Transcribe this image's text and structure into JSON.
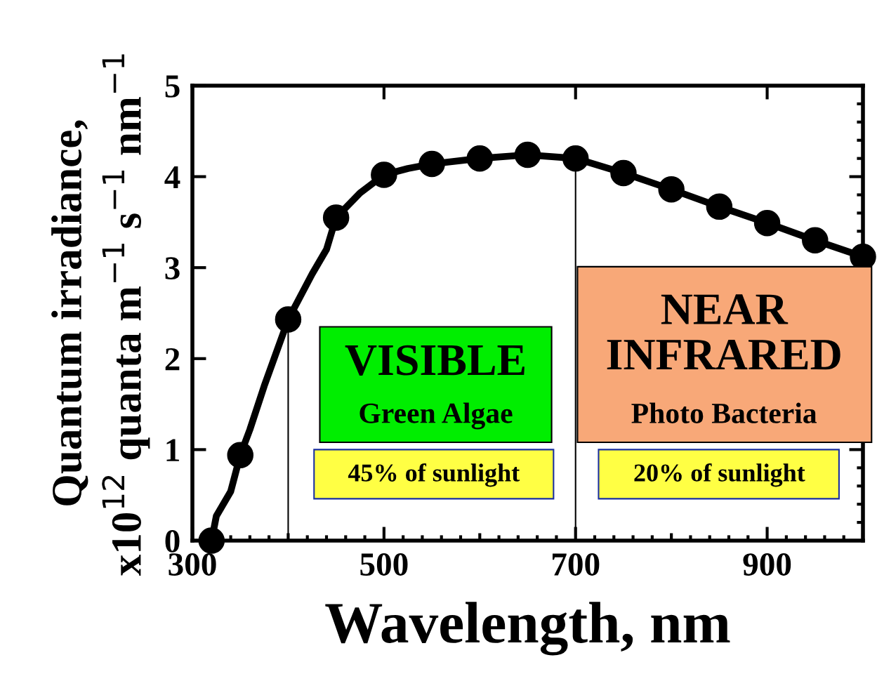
{
  "chart_data": {
    "type": "line",
    "xlabel": "Wavelength, nm",
    "ylabel": "Quantum irradiance,\nx10$^{12}$ quanta m$^{−1}$ s$^{−1}$ nm$^{−1}$",
    "xlim": [
      300,
      1000
    ],
    "ylim": [
      0,
      5
    ],
    "xticks": [
      300,
      500,
      700,
      900
    ],
    "yticks": [
      0,
      1,
      2,
      3,
      4,
      5
    ],
    "grid": false,
    "series": [
      {
        "color": "#000000",
        "marker": "none",
        "x": [
          320,
          325,
          340,
          350,
          360,
          375,
          400,
          425,
          440,
          450,
          475,
          500,
          525,
          550,
          600,
          650,
          700,
          750,
          800,
          850,
          900,
          950,
          1000
        ],
        "values": [
          0,
          0.27,
          0.54,
          0.94,
          1.22,
          1.7,
          2.43,
          2.93,
          3.2,
          3.55,
          3.82,
          4.02,
          4.09,
          4.14,
          4.2,
          4.24,
          4.2,
          4.04,
          3.86,
          3.67,
          3.49,
          3.3,
          3.12
        ]
      },
      {
        "type": "scatter",
        "color": "#000000",
        "marker": "circle",
        "x": [
          320,
          350,
          400,
          450,
          500,
          550,
          600,
          650,
          700,
          750,
          800,
          850,
          900,
          950,
          1000
        ],
        "values": [
          0,
          0.94,
          2.43,
          3.55,
          4.02,
          4.14,
          4.2,
          4.24,
          4.2,
          4.04,
          3.86,
          3.67,
          3.49,
          3.3,
          3.12
        ]
      }
    ],
    "ref_lines": [
      {
        "axis": "x",
        "value": 400,
        "color": "#000000"
      },
      {
        "axis": "x",
        "value": 700,
        "color": "#000000"
      },
      {
        "axis": "x",
        "value": 1000,
        "color": "#000000"
      }
    ],
    "annotations": [
      "VISIBLE",
      "Green Algae",
      "45% of sunlight",
      "NEAR\nINFRARED",
      "Photo Bacteria",
      "20% of sunlight"
    ]
  }
}
